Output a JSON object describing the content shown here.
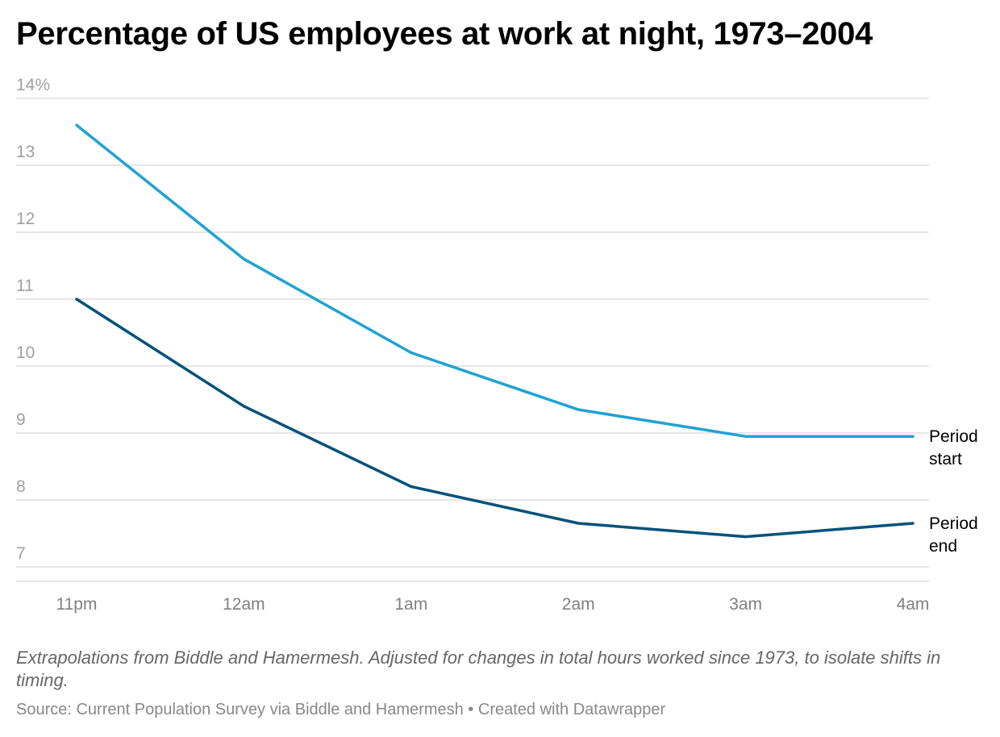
{
  "title": "Percentage of US employees at work at night, 1973–2004",
  "note": "Extrapolations from Biddle and Hamermesh. Adjusted for changes in total hours worked since 1973, to isolate shifts in timing.",
  "source": {
    "text": "Source: Current Population Survey via Biddle and Hamermesh",
    "separator": "•",
    "credit": "Created with Datawrapper"
  },
  "chart_data": {
    "type": "line",
    "categories": [
      "11pm",
      "12am",
      "1am",
      "2am",
      "3am",
      "4am"
    ],
    "y_ticks": [
      {
        "value": 7,
        "label": "7"
      },
      {
        "value": 8,
        "label": "8"
      },
      {
        "value": 9,
        "label": "9"
      },
      {
        "value": 10,
        "label": "10"
      },
      {
        "value": 11,
        "label": "11"
      },
      {
        "value": 12,
        "label": "12"
      },
      {
        "value": 13,
        "label": "13"
      },
      {
        "value": 14,
        "label": "14%"
      }
    ],
    "ylim": [
      6.8,
      14
    ],
    "series": [
      {
        "name": "Period start",
        "label_lines": [
          "Period",
          "start"
        ],
        "color": "#1fa2d3",
        "values": [
          13.6,
          11.6,
          10.2,
          9.35,
          8.95,
          8.95
        ]
      },
      {
        "name": "Period end",
        "label_lines": [
          "Period",
          "end"
        ],
        "color": "#00527a",
        "values": [
          11.0,
          9.4,
          8.2,
          7.65,
          7.45,
          7.65
        ]
      }
    ]
  }
}
